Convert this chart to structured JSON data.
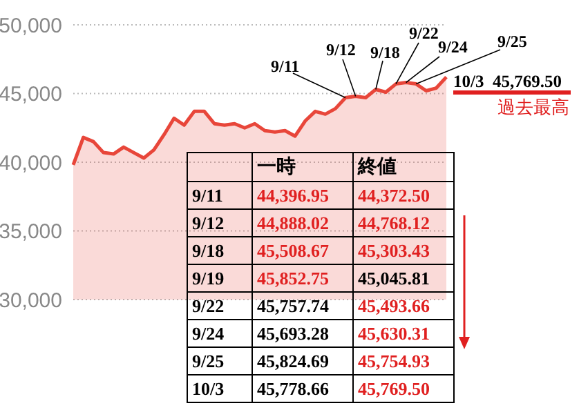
{
  "chart_data": [
    {
      "type": "area",
      "categories": [
        null,
        null,
        null,
        null,
        null,
        null,
        null,
        null,
        null,
        null,
        null,
        null,
        null,
        null,
        null,
        null,
        null,
        null,
        null,
        null,
        null,
        null,
        null,
        null,
        null,
        null,
        null,
        null,
        null,
        null,
        null,
        null,
        null,
        null,
        null,
        null,
        null,
        null
      ],
      "series": [
        {
          "color": "#e8463a",
          "values": [
            39800,
            41800,
            41500,
            40700,
            40600,
            41100,
            40700,
            40300,
            40900,
            42000,
            43200,
            42700,
            43700,
            43700,
            42800,
            42700,
            42800,
            42500,
            42800,
            42300,
            42200,
            42300,
            41900,
            43000,
            43700,
            43500,
            43900,
            44700,
            44800,
            44700,
            45300,
            45100,
            45700,
            45800,
            45700,
            45200,
            45400,
            46200
          ]
        }
      ],
      "ylim": [
        30000,
        50000
      ],
      "yticks": [
        {
          "value": 30000,
          "label": "30,000"
        },
        {
          "value": 35000,
          "label": "35,000"
        },
        {
          "value": 40000,
          "label": "40,000"
        },
        {
          "value": 45000,
          "label": "45,000"
        },
        {
          "value": 50000,
          "label": "50,000"
        }
      ],
      "grid": "y",
      "tick_labels": "y",
      "annotations": [
        "9/11",
        "9/12",
        "9/18",
        "9/22",
        "9/24",
        "9/25",
        "10/3  45,769.50",
        "過去最高"
      ]
    },
    {
      "type": "other",
      "categories": [
        "9/11",
        "9/12",
        "9/18",
        "9/19",
        "9/22",
        "9/24",
        "9/25",
        "10/3"
      ],
      "series": [
        {
          "name": "一時",
          "values": [
            44396.95,
            44888.02,
            45508.67,
            45852.75,
            45757.74,
            45693.28,
            45824.69,
            45778.66
          ],
          "value_labels": [
            "44,396.95",
            "44,888.02",
            "45,508.67",
            "45,852.75",
            "45,757.74",
            "45,693.28",
            "45,824.69",
            "45,778.66"
          ],
          "colors": [
            "#e02020",
            "#e02020",
            "#e02020",
            "#e02020",
            "#000000",
            "#000000",
            "#000000",
            "#000000"
          ]
        },
        {
          "name": "終値",
          "values": [
            44372.5,
            44768.12,
            45303.43,
            45045.81,
            45493.66,
            45630.31,
            45754.93,
            45769.5
          ],
          "value_labels": [
            "44,372.50",
            "44,768.12",
            "45,303.43",
            "45,045.81",
            "45,493.66",
            "45,630.31",
            "45,754.93",
            "45,769.50"
          ],
          "colors": [
            "#e02020",
            "#e02020",
            "#e02020",
            "#000000",
            "#e02020",
            "#e02020",
            "#e02020",
            "#e02020"
          ]
        }
      ]
    }
  ]
}
